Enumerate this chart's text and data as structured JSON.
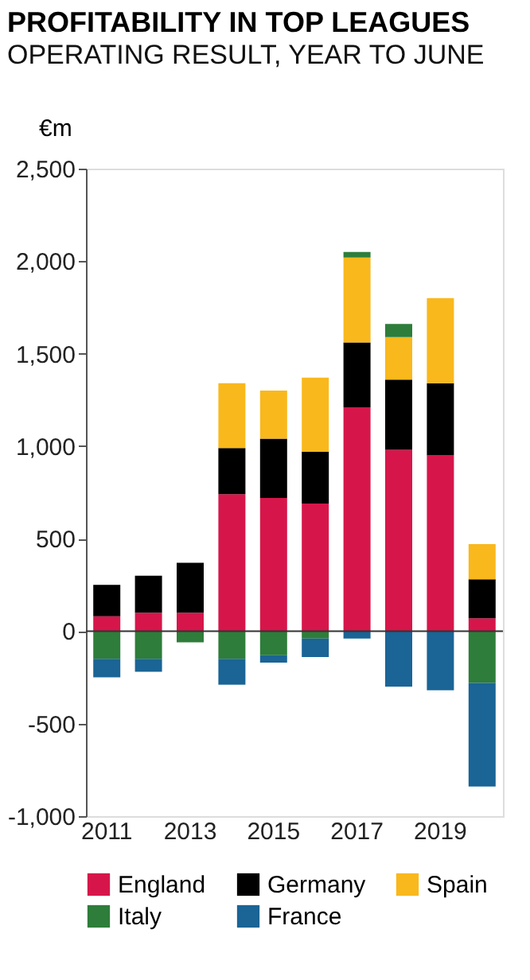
{
  "chart_data": {
    "type": "bar",
    "title": "PROFITABILITY IN TOP LEAGUES",
    "subtitle": "OPERATING RESULT, YEAR TO JUNE",
    "ylabel": "€m",
    "categories": [
      "2011",
      null,
      "2013",
      null,
      "2015",
      null,
      "2017",
      null,
      "2019",
      null
    ],
    "stacked": true,
    "series": [
      {
        "name": "England",
        "color": "#d6164a",
        "values": [
          80,
          100,
          100,
          740,
          720,
          690,
          1210,
          980,
          950,
          70
        ]
      },
      {
        "name": "Germany",
        "color": "#000000",
        "values": [
          170,
          200,
          270,
          250,
          320,
          280,
          350,
          380,
          390,
          210
        ]
      },
      {
        "name": "Spain",
        "color": "#f9b81c",
        "values": [
          null,
          null,
          null,
          350,
          260,
          400,
          460,
          230,
          460,
          190
        ]
      },
      {
        "name": "Italy",
        "color": "#2e7d3a",
        "values": [
          -150,
          -150,
          -60,
          -150,
          -130,
          -40,
          30,
          70,
          null,
          -280
        ]
      },
      {
        "name": "France",
        "color": "#1a6496",
        "values": [
          -100,
          -70,
          null,
          -140,
          -40,
          -100,
          -40,
          -300,
          -320,
          -560
        ]
      }
    ],
    "ylim": [
      -1000,
      2500
    ],
    "yticks": [
      {
        "value": -1000,
        "label": "-1,000"
      },
      -500,
      0,
      500,
      {
        "value": 1000,
        "label": "1,000"
      },
      {
        "value": 1500,
        "label": "1,500"
      },
      {
        "value": 2000,
        "label": "2,000"
      },
      {
        "value": 2500,
        "label": "2,500"
      }
    ],
    "ref_lines": [
      {
        "axis": "y",
        "value": 0
      }
    ],
    "grid": false,
    "legend": "bottom"
  }
}
